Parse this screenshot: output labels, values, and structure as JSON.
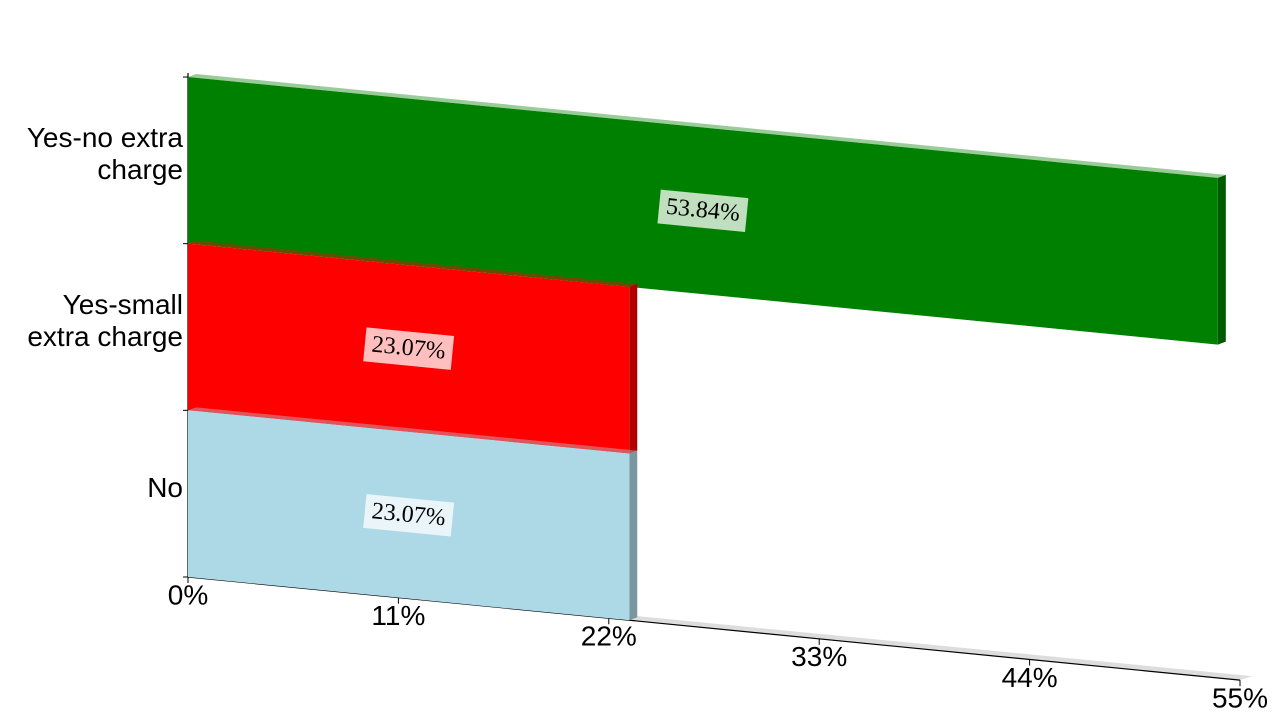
{
  "chart_data": {
    "type": "bar",
    "orientation": "horizontal",
    "categories": [
      "Yes-no extra charge",
      "Yes-small extra charge",
      "No"
    ],
    "values": [
      53.84,
      23.07,
      23.07
    ],
    "value_labels": [
      "53.84%",
      "23.07%",
      "23.07%"
    ],
    "colors": [
      "#008000",
      "#ff0000",
      "#add8e6"
    ],
    "xlim": [
      0,
      55
    ],
    "xticks": [
      {
        "value": 0,
        "label": "0%"
      },
      {
        "value": 11,
        "label": "11%"
      },
      {
        "value": 22,
        "label": "22%"
      },
      {
        "value": 33,
        "label": "33%"
      },
      {
        "value": 44,
        "label": "44%"
      },
      {
        "value": 55,
        "label": "55%"
      }
    ]
  }
}
